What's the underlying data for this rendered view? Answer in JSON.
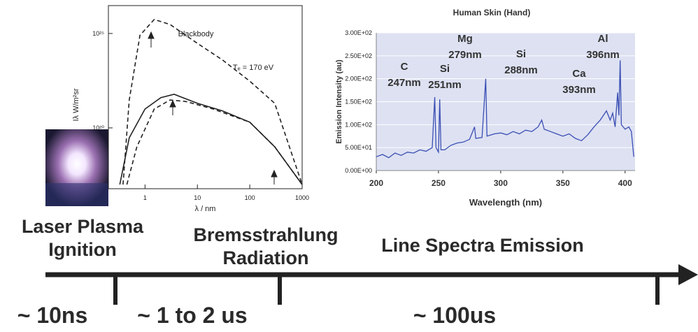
{
  "chart_data": [
    {
      "type": "line",
      "xscale": "log",
      "yscale": "log",
      "x_label": "λ / nm",
      "y_label": "Iλ  W/m²sr",
      "annotations": [
        "Blackbody",
        "Tₑ = 170 eV"
      ],
      "xlim": [
        0.2,
        1000
      ],
      "ylim": [
        6e+16,
        3e+26
      ],
      "xticks": [
        1,
        10,
        100,
        1000
      ],
      "yticks": [
        {
          "value": 1e+20,
          "label": "10²⁰"
        },
        {
          "value": 1e+25,
          "label": "10²⁵"
        }
      ],
      "series": [
        {
          "name": "Blackbody",
          "color": "#222222",
          "linestyle": "dashed",
          "x": [
            0.38,
            0.5,
            0.8,
            1.5,
            3,
            10,
            30,
            100,
            300,
            1000
          ],
          "values": [
            1e+17,
            3e+21,
            8e+24,
            5.5e+25,
            3e+25,
            3e+24,
            4e+23,
            3e+22,
            2e+21,
            1e+17
          ]
        },
        {
          "color": "#222222",
          "linestyle": "solid",
          "x": [
            0.33,
            0.5,
            1,
            2,
            3.6,
            10,
            30,
            100,
            300,
            1000
          ],
          "values": [
            1e+17,
            3e+19,
            1e+21,
            4e+21,
            6e+21,
            2e+21,
            8e+20,
            2e+20,
            1e+19,
            1e+17
          ]
        },
        {
          "color": "#222222",
          "linestyle": "dashed",
          "x": [
            0.45,
            0.7,
            1.5,
            3,
            6,
            20,
            100,
            300,
            1000
          ],
          "values": [
            1e+17,
            1e+19,
            1e+21,
            3e+21,
            2.5e+21,
            1e+21,
            2e+20,
            1e+19,
            1e+17
          ]
        }
      ]
    },
    {
      "type": "line",
      "title": "Human Skin (Hand)",
      "x_label": "Wavelength (nm)",
      "y_label": "Emission Intensity (au)",
      "xlim": [
        200,
        408
      ],
      "ylim": [
        0,
        300
      ],
      "xticks": [
        200,
        250,
        300,
        350,
        400
      ],
      "yticks": [
        {
          "value": 0,
          "label": "0.00E+00"
        },
        {
          "value": 50,
          "label": "5.00E+01"
        },
        {
          "value": 100,
          "label": "1.00E+02"
        },
        {
          "value": 150,
          "label": "1.50E+02"
        },
        {
          "value": 200,
          "label": "2.00E+02"
        },
        {
          "value": 250,
          "label": "2.50E+02"
        },
        {
          "value": 300,
          "label": "3.00E+02"
        }
      ],
      "grid": true,
      "background": "#dde1f2",
      "annotations": [
        [
          "C",
          "247nm"
        ],
        [
          "Si",
          "251nm"
        ],
        [
          "Mg",
          "279nm"
        ],
        [
          "Si",
          "288nm"
        ],
        [
          "Ca",
          "393nm"
        ],
        [
          "Al",
          "396nm"
        ]
      ],
      "series": [
        {
          "color": "#3b4fb3",
          "linestyle": "solid",
          "x": [
            200,
            205,
            210,
            215,
            220,
            225,
            230,
            235,
            240,
            245,
            247,
            248,
            250,
            251,
            252,
            255,
            260,
            265,
            270,
            275,
            279,
            280,
            285,
            288,
            289,
            295,
            300,
            305,
            310,
            315,
            320,
            325,
            330,
            333,
            335,
            340,
            345,
            350,
            355,
            360,
            365,
            370,
            375,
            380,
            385,
            388,
            390,
            392,
            394,
            395,
            396,
            397,
            400,
            403,
            405,
            407
          ],
          "values": [
            30,
            35,
            28,
            38,
            33,
            40,
            38,
            45,
            42,
            50,
            160,
            50,
            40,
            155,
            45,
            45,
            55,
            60,
            62,
            68,
            95,
            70,
            72,
            200,
            75,
            80,
            82,
            78,
            85,
            80,
            88,
            85,
            95,
            110,
            90,
            85,
            80,
            75,
            80,
            70,
            65,
            78,
            95,
            110,
            130,
            110,
            125,
            95,
            170,
            120,
            240,
            100,
            90,
            95,
            85,
            30
          ]
        }
      ]
    }
  ],
  "timeline": {
    "phases": [
      [
        "Laser Plasma",
        "Ignition"
      ],
      [
        "Bremsstrahlung",
        "Radiation"
      ],
      [
        "Line Spectra Emission"
      ]
    ],
    "durations": [
      "~ 10ns",
      "~ 1 to 2 us",
      "~ 100us"
    ]
  }
}
